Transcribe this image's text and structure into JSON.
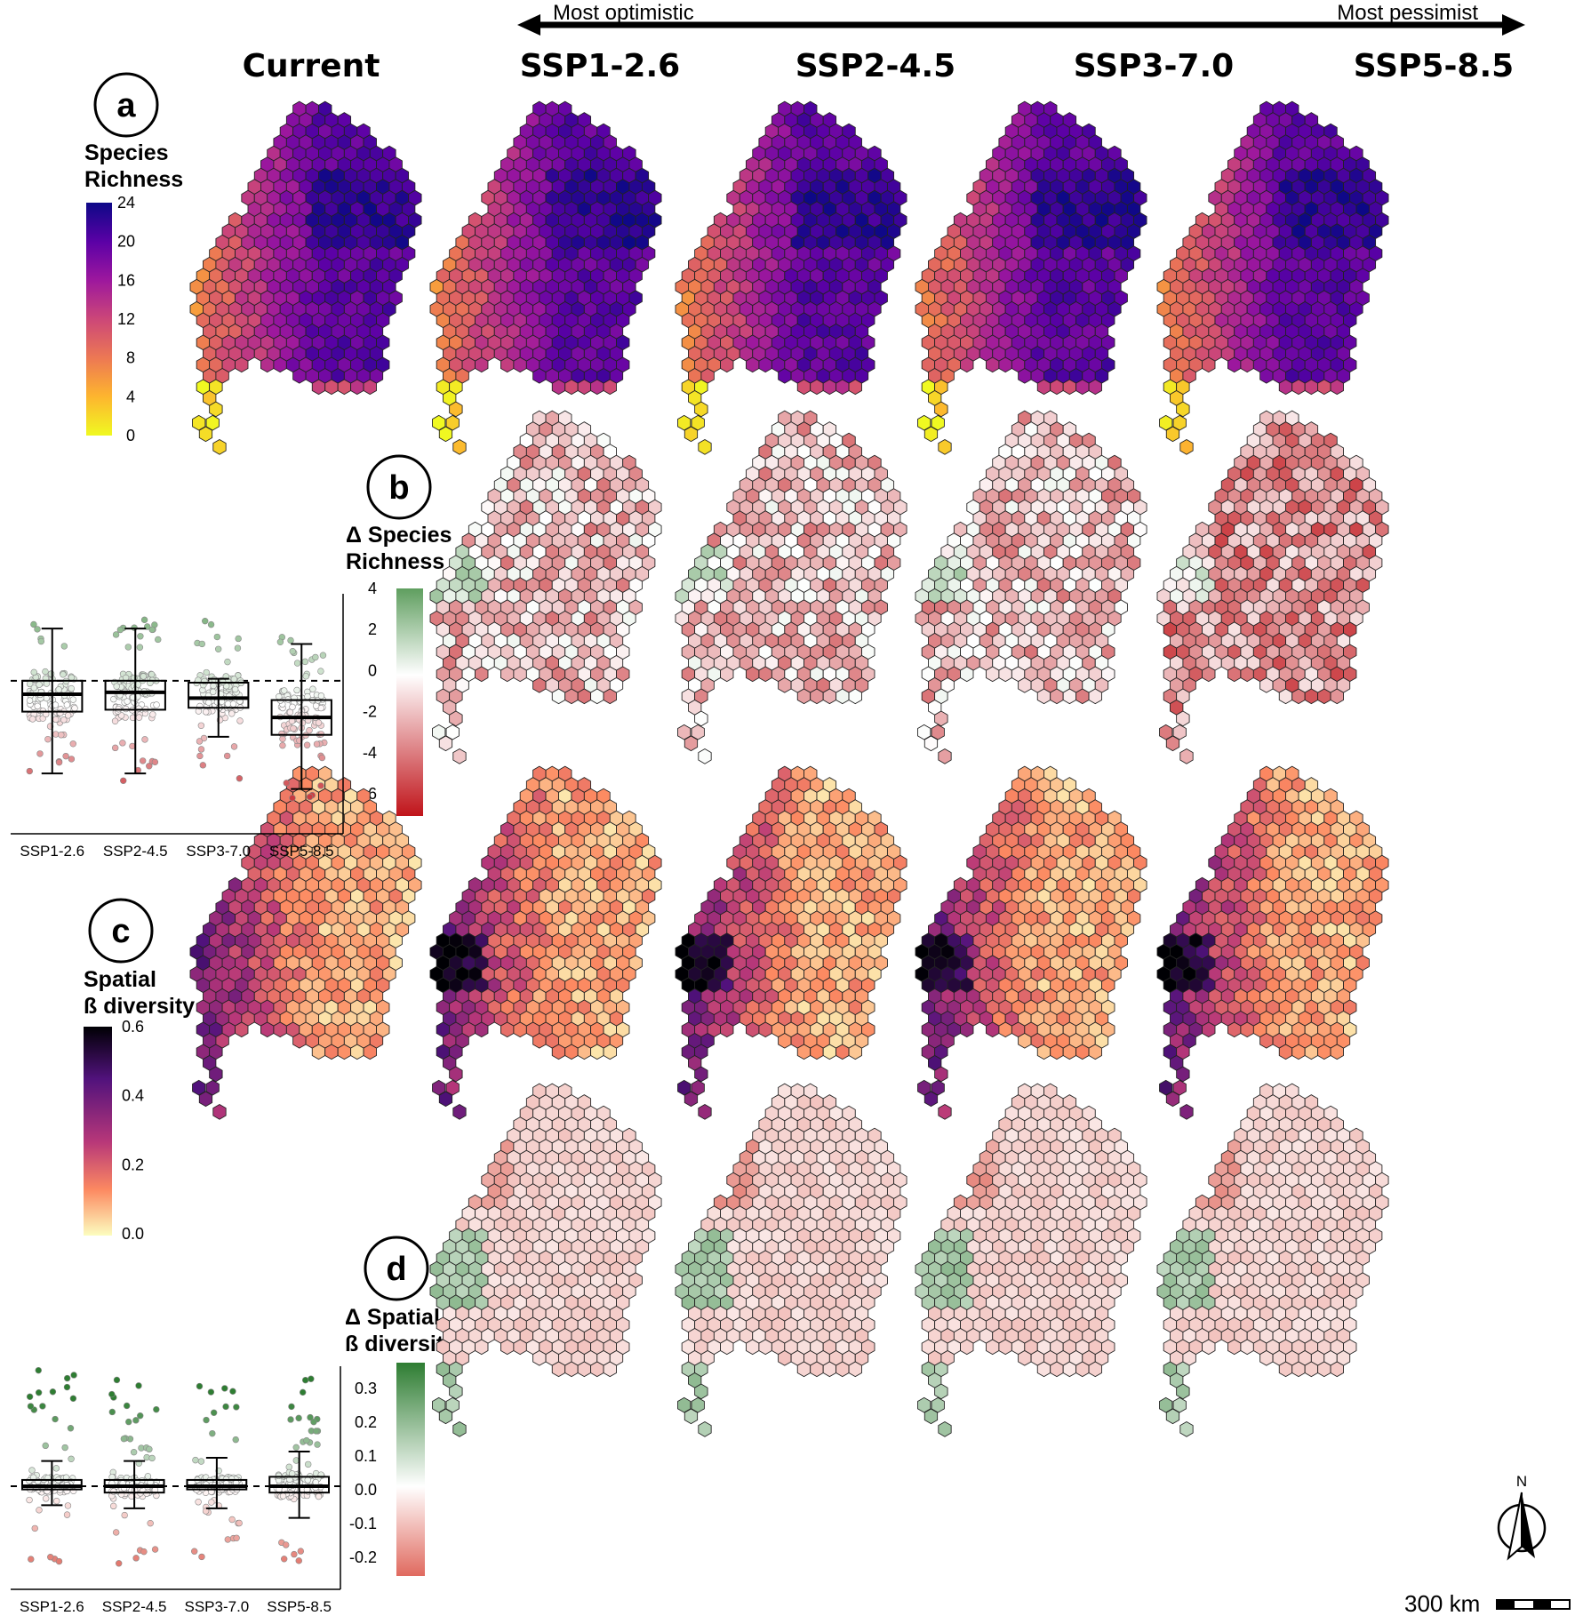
{
  "figure": {
    "arrow": {
      "left_label": "Most optimistic",
      "right_label": "Most pessimist"
    },
    "columns": [
      "Current",
      "SSP1-2.6",
      "SSP2-4.5",
      "SSP3-7.0",
      "SSP5-8.5"
    ],
    "panels": {
      "a": {
        "letter": "a",
        "legend_title": [
          "Species",
          "Richness"
        ],
        "legend_ticks": [
          "24",
          "20",
          "16",
          "12",
          "8",
          "4",
          "0"
        ],
        "colors": [
          "#0d0887",
          "#5c01a6",
          "#9c179e",
          "#cc4778",
          "#ed7953",
          "#fdb42f",
          "#f0f921"
        ]
      },
      "b": {
        "letter": "b",
        "legend_title": [
          "Δ Species",
          "Richness"
        ],
        "legend_ticks": [
          "4",
          "2",
          "0",
          "-2",
          "-4",
          "-6"
        ],
        "colors": [
          "#5f9e5f",
          "#ffffff",
          "#c0141a"
        ]
      },
      "c": {
        "letter": "c",
        "legend_title": [
          "Spatial",
          "ß diversity"
        ],
        "legend_ticks": [
          "0.6",
          "0.4",
          "0.2",
          "0.0"
        ],
        "colors": [
          "#000004",
          "#51127c",
          "#b73779",
          "#fc8961",
          "#fcfdbf"
        ]
      },
      "d": {
        "letter": "d",
        "legend_title": [
          "Δ Spatial",
          "ß diversity"
        ],
        "legend_ticks": [
          "0.3",
          "0.2",
          "0.1",
          "0.0",
          "-0.1",
          "-0.2"
        ],
        "colors": [
          "#2e7d32",
          "#ffffff",
          "#e06a5f"
        ]
      }
    },
    "scale_bar": {
      "label": "300 km"
    },
    "north_arrow": {
      "label": "N"
    }
  },
  "chart_data": [
    {
      "type": "box",
      "panel": "b",
      "categories": [
        "SSP1-2.6",
        "SSP2-4.5",
        "SSP3-7.0",
        "SSP5-8.5"
      ],
      "ylim": [
        -7,
        4.5
      ],
      "reference_line": 0,
      "boxes": [
        {
          "name": "SSP1-2.6",
          "whisker_low": -4.8,
          "q1": -1.6,
          "median": -0.7,
          "q3": 0.0,
          "whisker_high": 2.7,
          "point_min": -5.0,
          "point_max": 3.6
        },
        {
          "name": "SSP2-4.5",
          "whisker_low": -4.8,
          "q1": -1.5,
          "median": -0.6,
          "q3": 0.0,
          "whisker_high": 2.7,
          "point_min": -5.2,
          "point_max": 3.5
        },
        {
          "name": "SSP3-7.0",
          "whisker_low": -2.9,
          "q1": -1.4,
          "median": -0.9,
          "q3": -0.1,
          "whisker_high": 0.1,
          "point_min": -5.4,
          "point_max": 3.5
        },
        {
          "name": "SSP5-8.5",
          "whisker_low": -5.6,
          "q1": -2.8,
          "median": -1.9,
          "q3": -1.0,
          "whisker_high": 1.9,
          "point_min": -6.8,
          "point_max": 3.1
        }
      ]
    },
    {
      "type": "box",
      "panel": "d",
      "categories": [
        "SSP1-2.6",
        "SSP2-4.5",
        "SSP3-7.0",
        "SSP5-8.5"
      ],
      "ylim": [
        -0.27,
        0.38
      ],
      "reference_line": 0,
      "boxes": [
        {
          "name": "SSP1-2.6",
          "whisker_low": -0.06,
          "q1": -0.01,
          "median": 0.0,
          "q3": 0.02,
          "whisker_high": 0.08,
          "point_min": -0.24,
          "point_max": 0.37
        },
        {
          "name": "SSP2-4.5",
          "whisker_low": -0.07,
          "q1": -0.02,
          "median": 0.0,
          "q3": 0.02,
          "whisker_high": 0.08,
          "point_min": -0.26,
          "point_max": 0.36
        },
        {
          "name": "SSP3-7.0",
          "whisker_low": -0.07,
          "q1": -0.01,
          "median": 0.0,
          "q3": 0.02,
          "whisker_high": 0.09,
          "point_min": -0.24,
          "point_max": 0.33
        },
        {
          "name": "SSP5-8.5",
          "whisker_low": -0.1,
          "q1": -0.02,
          "median": 0.0,
          "q3": 0.03,
          "whisker_high": 0.11,
          "point_min": -0.25,
          "point_max": 0.35
        }
      ]
    }
  ]
}
